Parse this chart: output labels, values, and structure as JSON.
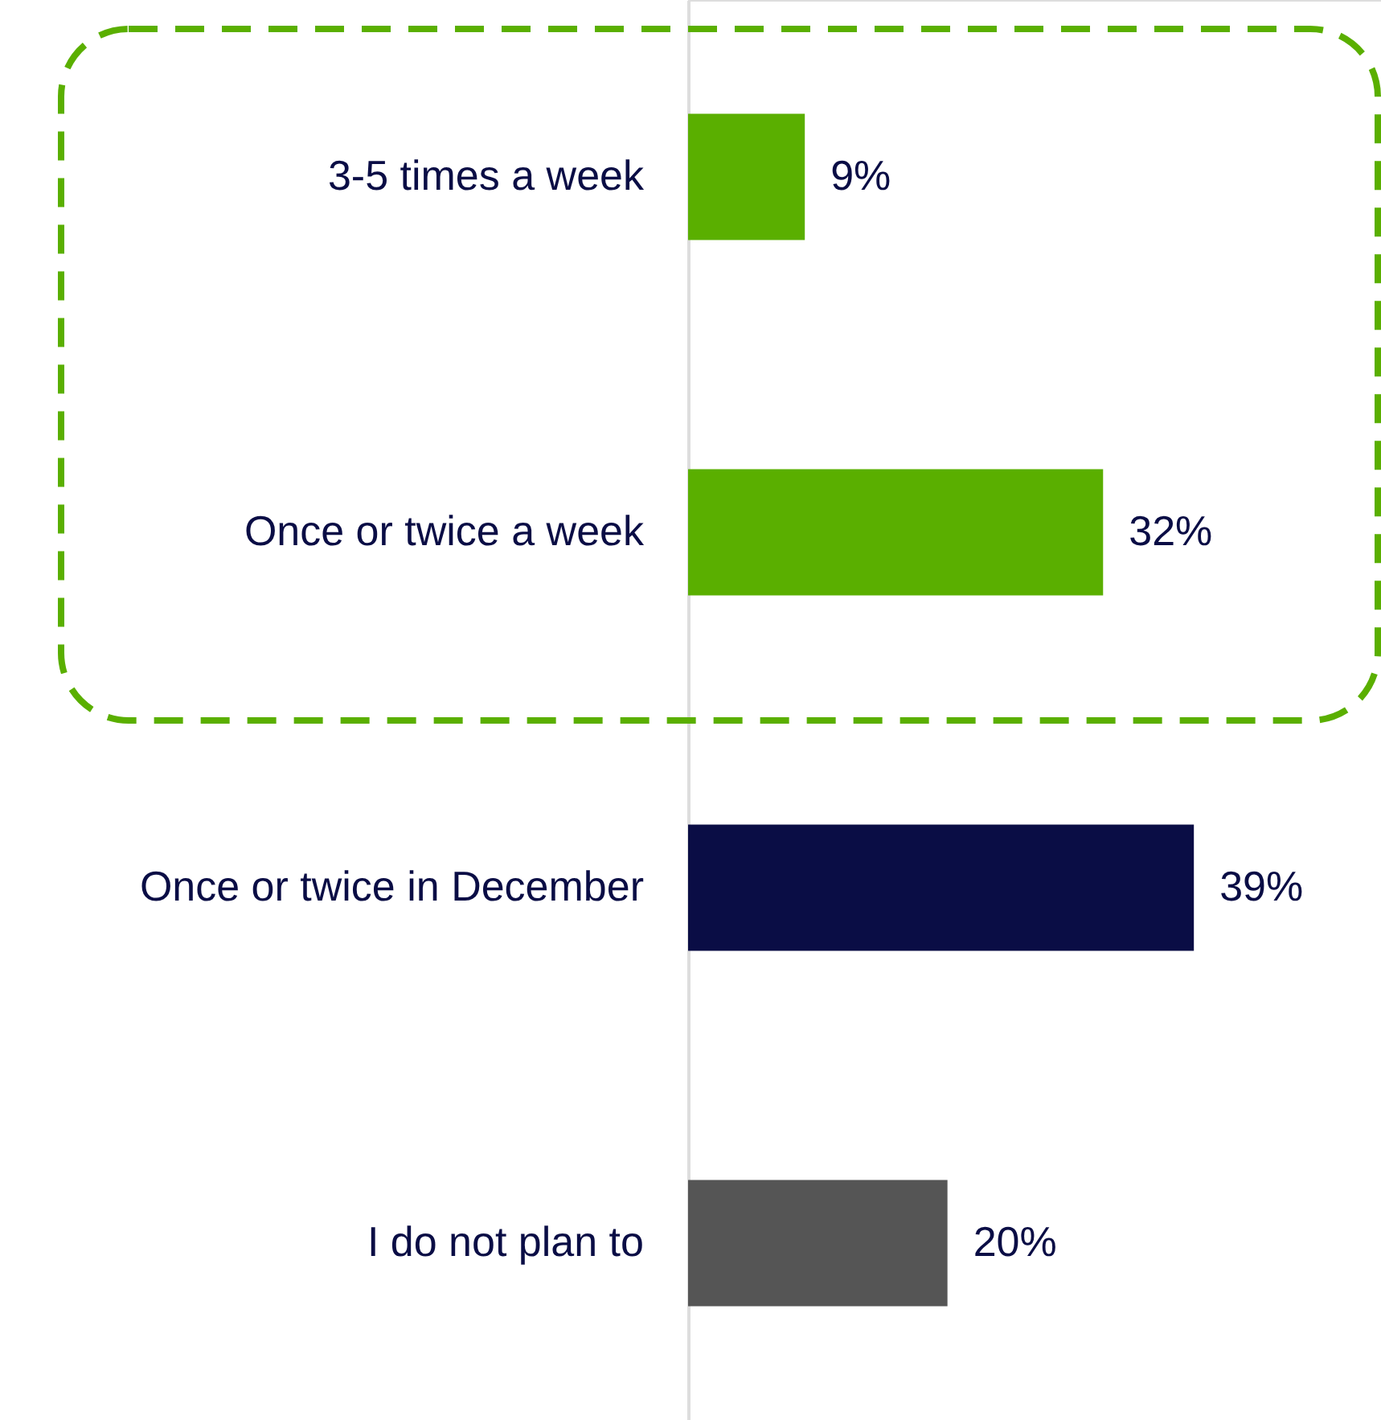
{
  "chart_data": {
    "type": "bar",
    "orientation": "horizontal",
    "categories": [
      "3-5 times a week",
      "Once or twice a week",
      "Once or twice in December",
      "I do not plan to"
    ],
    "values": [
      9,
      32,
      39,
      20
    ],
    "colors": [
      "#5aaf00",
      "#5aaf00",
      "#0a0d45",
      "#555555"
    ],
    "value_labels": [
      "9%",
      "32%",
      "39%",
      "20%"
    ]
  }
}
